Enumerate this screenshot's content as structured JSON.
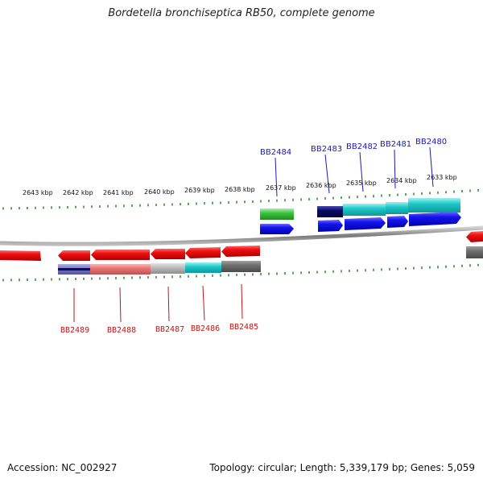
{
  "title": "Bordetella bronchiseptica RB50, complete genome",
  "footer": {
    "accession": "Accession: NC_002927",
    "stats": "Topology: circular; Length: 5,339,179 bp; Genes: 5,059"
  },
  "scale_labels": [
    "2643 kbp",
    "2642 kbp",
    "2641 kbp",
    "2640 kbp",
    "2639 kbp",
    "2638 kbp",
    "2637 kbp",
    "2636 kbp",
    "2635 kbp",
    "2634 kbp",
    "2633 kbp"
  ],
  "top_gene_labels": [
    "BB2484",
    "BB2483",
    "BB2482",
    "BB2481",
    "BB2480"
  ],
  "bottom_gene_labels": [
    "BB2489",
    "BB2488",
    "BB2487",
    "BB2486",
    "BB2485"
  ],
  "colors": {
    "forward_gene": "#1010e6",
    "reverse_gene": "#e8101a",
    "scale_tick": "#0c6e0c",
    "backbone": "#8c8c8c",
    "top_label": "#1a1ab4",
    "bottom_label": "#c01818"
  }
}
